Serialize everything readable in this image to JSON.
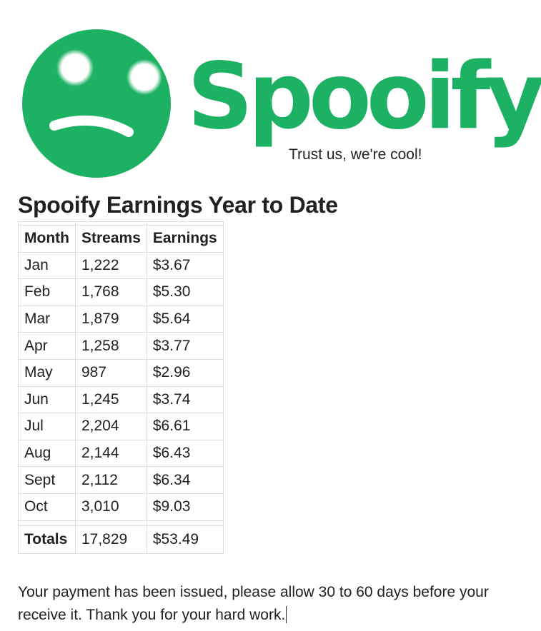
{
  "brand": {
    "name": "Spooify",
    "tagline": "Trust us, we're cool!",
    "color": "#1db263",
    "logo_icon": "sad-face-icon"
  },
  "heading": "Spooify Earnings Year to Date",
  "table": {
    "headers": [
      "Month",
      "Streams",
      "Earnings"
    ],
    "rows": [
      [
        "Jan",
        "1,222",
        "$3.67"
      ],
      [
        "Feb",
        "1,768",
        "$5.30"
      ],
      [
        "Mar",
        "1,879",
        "$5.64"
      ],
      [
        "Apr",
        "1,258",
        "$3.77"
      ],
      [
        "May",
        "987",
        "$2.96"
      ],
      [
        "Jun",
        "1,245",
        "$3.74"
      ],
      [
        "Jul",
        "2,204",
        "$6.61"
      ],
      [
        "Aug",
        "2,144",
        "$6.43"
      ],
      [
        "Sept",
        "2,112",
        "$6.34"
      ],
      [
        "Oct",
        "3,010",
        "$9.03"
      ]
    ],
    "totals": [
      "Totals",
      "17,829",
      "$53.49"
    ]
  },
  "message": "Your payment has been issued, please allow 30 to 60 days before your receive it. Thank you for your hard work."
}
